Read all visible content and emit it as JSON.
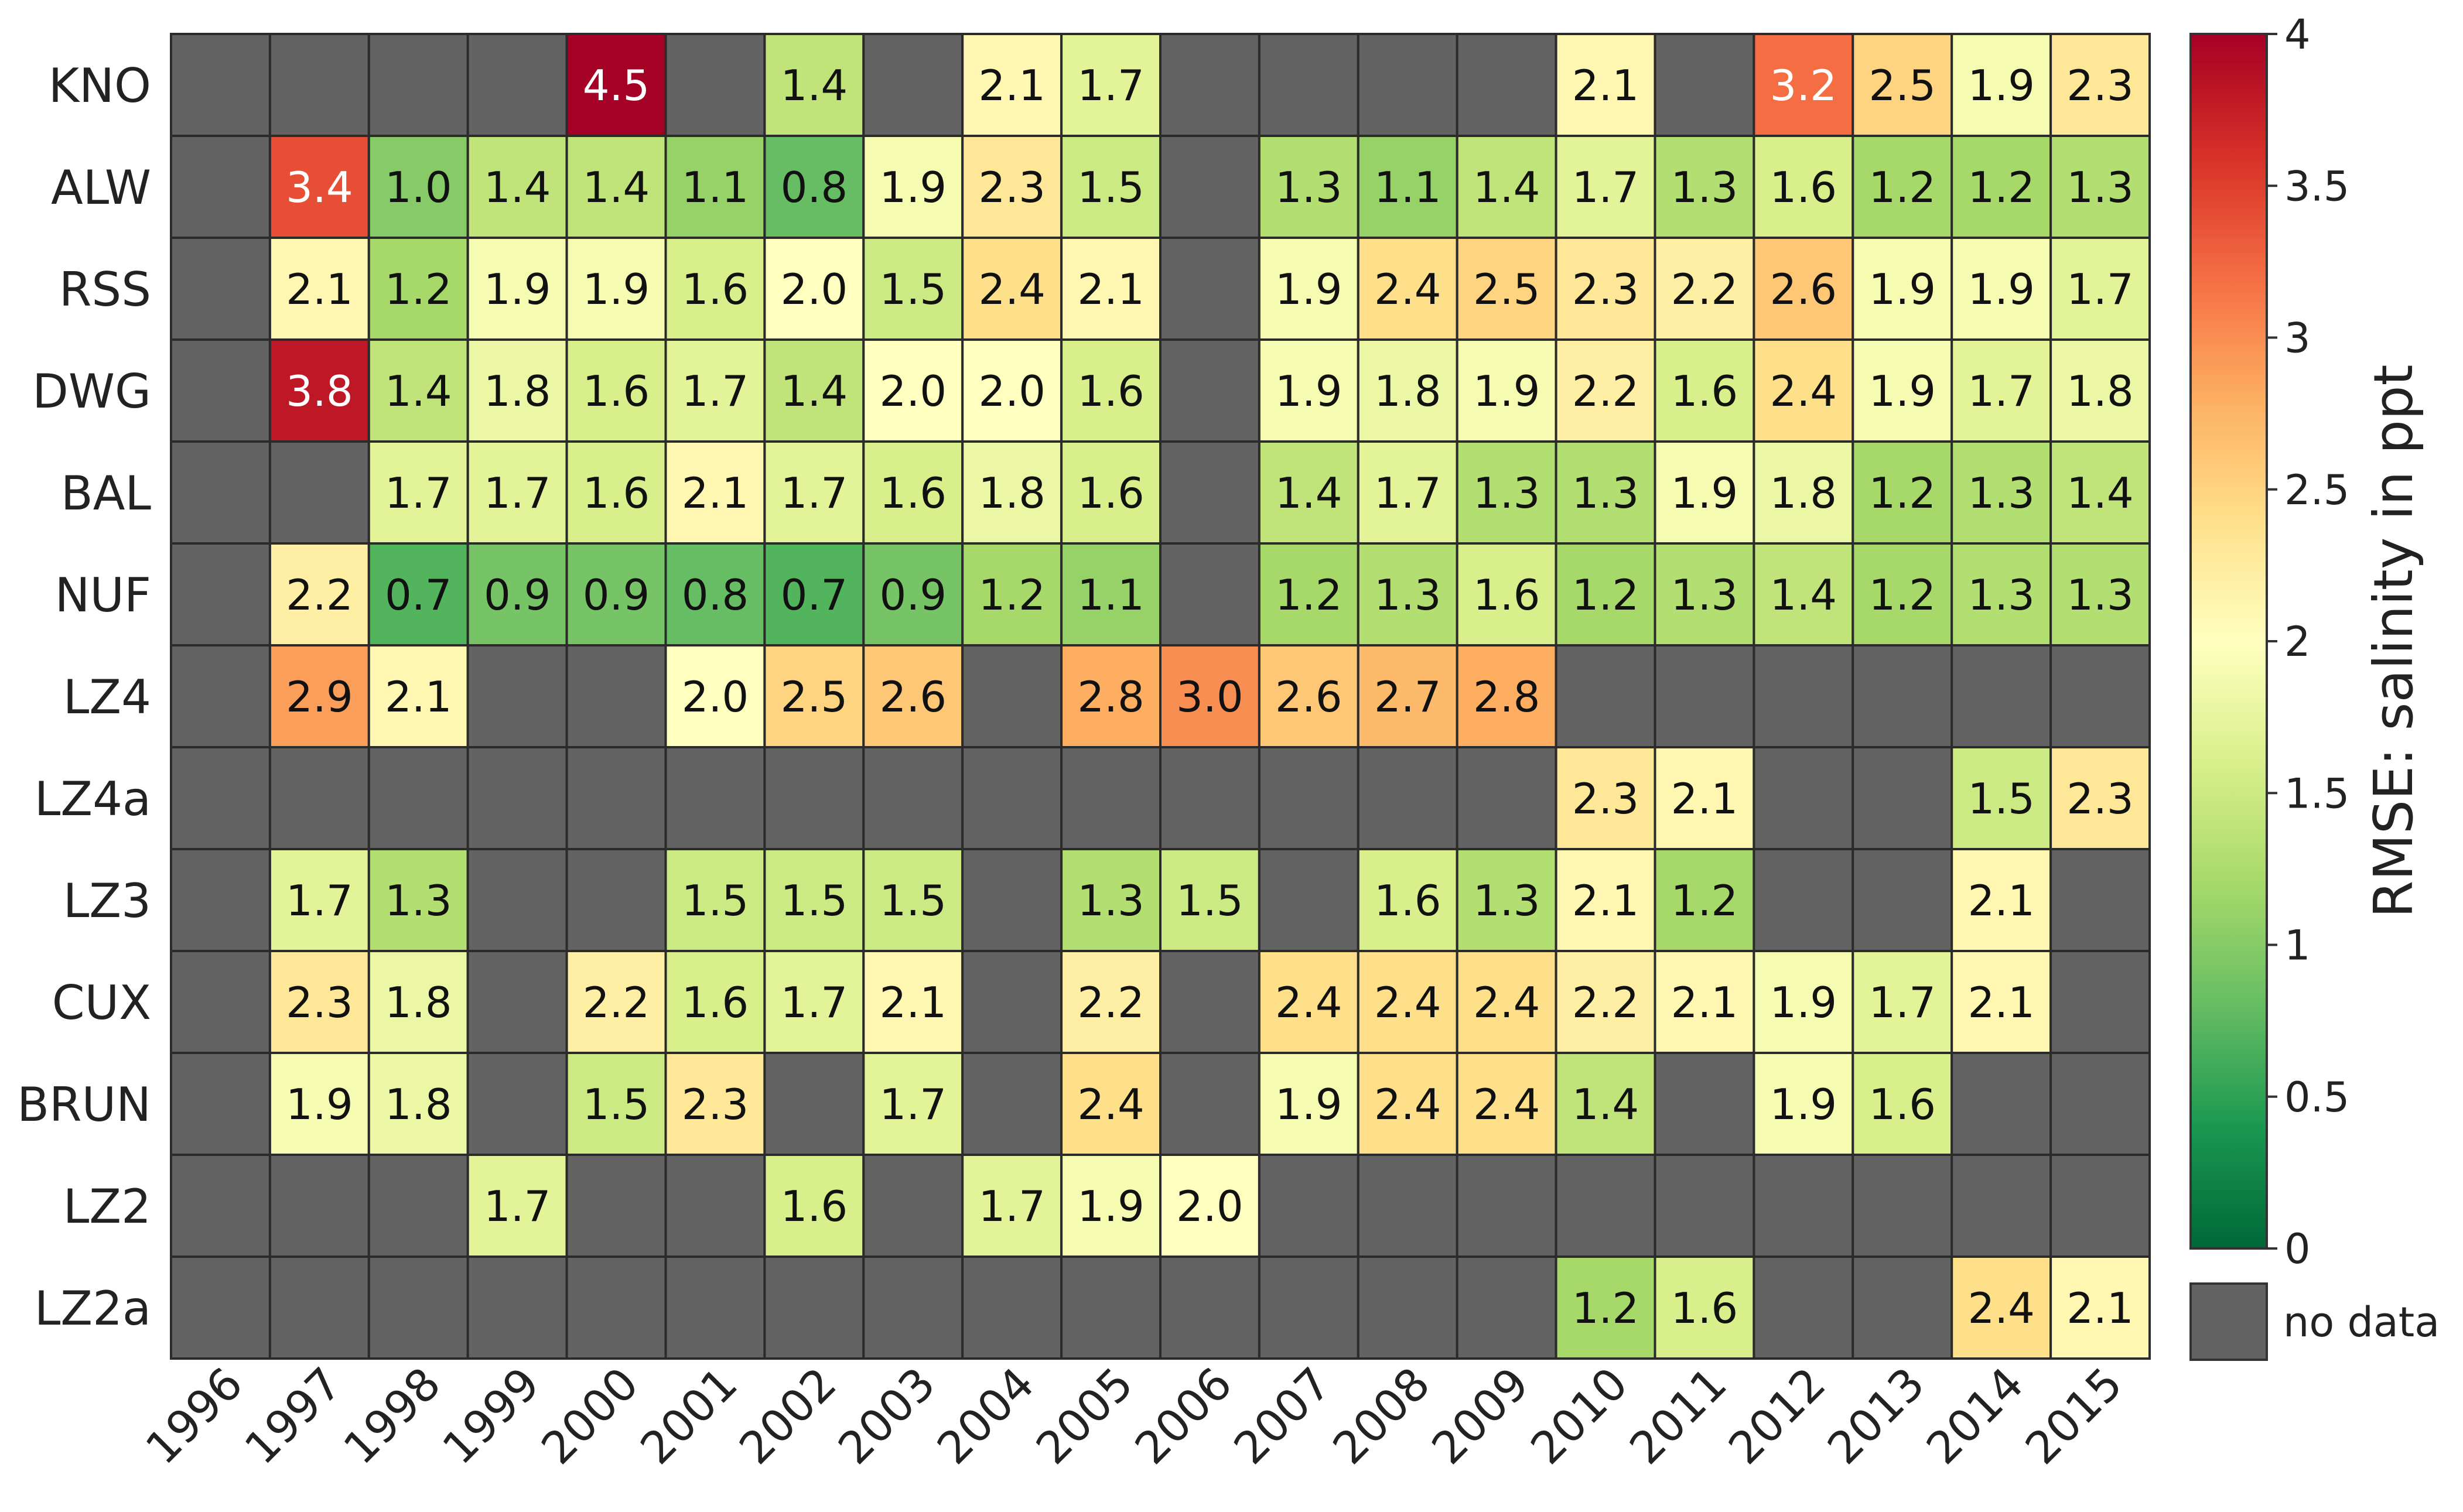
{
  "chart_data": {
    "type": "heatmap",
    "title": "",
    "xlabel": "",
    "ylabel": "",
    "x_categories": [
      "1996",
      "1997",
      "1998",
      "1999",
      "2000",
      "2001",
      "2002",
      "2003",
      "2004",
      "2005",
      "2006",
      "2007",
      "2008",
      "2009",
      "2010",
      "2011",
      "2012",
      "2013",
      "2014",
      "2015"
    ],
    "y_categories": [
      "KNO",
      "ALW",
      "RSS",
      "DWG",
      "BAL",
      "NUF",
      "LZ4",
      "LZ4a",
      "LZ3",
      "CUX",
      "BRUN",
      "LZ2",
      "LZ2a"
    ],
    "values": [
      [
        null,
        null,
        null,
        null,
        4.5,
        null,
        1.4,
        null,
        2.1,
        1.7,
        null,
        null,
        null,
        null,
        2.1,
        null,
        3.2,
        2.5,
        1.9,
        2.3
      ],
      [
        null,
        3.4,
        1.0,
        1.4,
        1.4,
        1.1,
        0.8,
        1.9,
        2.3,
        1.5,
        null,
        1.3,
        1.1,
        1.4,
        1.7,
        1.3,
        1.6,
        1.2,
        1.2,
        1.3
      ],
      [
        null,
        2.1,
        1.2,
        1.9,
        1.9,
        1.6,
        2.0,
        1.5,
        2.4,
        2.1,
        null,
        1.9,
        2.4,
        2.5,
        2.3,
        2.2,
        2.6,
        1.9,
        1.9,
        1.7
      ],
      [
        null,
        3.8,
        1.4,
        1.8,
        1.6,
        1.7,
        1.4,
        2.0,
        2.0,
        1.6,
        null,
        1.9,
        1.8,
        1.9,
        2.2,
        1.6,
        2.4,
        1.9,
        1.7,
        1.8
      ],
      [
        null,
        null,
        1.7,
        1.7,
        1.6,
        2.1,
        1.7,
        1.6,
        1.8,
        1.6,
        null,
        1.4,
        1.7,
        1.3,
        1.3,
        1.9,
        1.8,
        1.2,
        1.3,
        1.4
      ],
      [
        null,
        2.2,
        0.7,
        0.9,
        0.9,
        0.8,
        0.7,
        0.9,
        1.2,
        1.1,
        null,
        1.2,
        1.3,
        1.6,
        1.2,
        1.3,
        1.4,
        1.2,
        1.3,
        1.3
      ],
      [
        null,
        2.9,
        2.1,
        null,
        null,
        2.0,
        2.5,
        2.6,
        null,
        2.8,
        3.0,
        2.6,
        2.7,
        2.8,
        null,
        null,
        null,
        null,
        null,
        null
      ],
      [
        null,
        null,
        null,
        null,
        null,
        null,
        null,
        null,
        null,
        null,
        null,
        null,
        null,
        null,
        2.3,
        2.1,
        null,
        null,
        1.5,
        2.3
      ],
      [
        null,
        1.7,
        1.3,
        null,
        null,
        1.5,
        1.5,
        1.5,
        null,
        1.3,
        1.5,
        null,
        1.6,
        1.3,
        2.1,
        1.2,
        null,
        null,
        2.1,
        null
      ],
      [
        null,
        2.3,
        1.8,
        null,
        2.2,
        1.6,
        1.7,
        2.1,
        null,
        2.2,
        null,
        2.4,
        2.4,
        2.4,
        2.2,
        2.1,
        1.9,
        1.7,
        2.1,
        null
      ],
      [
        null,
        1.9,
        1.8,
        null,
        1.5,
        2.3,
        null,
        1.7,
        null,
        2.4,
        null,
        1.9,
        2.4,
        2.4,
        1.4,
        null,
        1.9,
        1.6,
        null,
        null
      ],
      [
        null,
        null,
        null,
        1.7,
        null,
        null,
        1.6,
        null,
        1.7,
        1.9,
        2.0,
        null,
        null,
        null,
        null,
        null,
        null,
        null,
        null,
        null
      ],
      [
        null,
        null,
        null,
        null,
        null,
        null,
        null,
        null,
        null,
        null,
        null,
        null,
        null,
        null,
        1.2,
        1.6,
        null,
        null,
        2.4,
        2.1
      ]
    ],
    "colorbar": {
      "label": "RMSE: salinity in ppt",
      "range": [
        0,
        4
      ],
      "ticks": [
        "0",
        "0.5",
        "1",
        "1.5",
        "2",
        "2.5",
        "3",
        "3.5",
        "4"
      ],
      "colormap": "RdYlGn_r"
    },
    "no_data_legend": {
      "label": "no data",
      "color": "#636363"
    },
    "grid": true
  }
}
